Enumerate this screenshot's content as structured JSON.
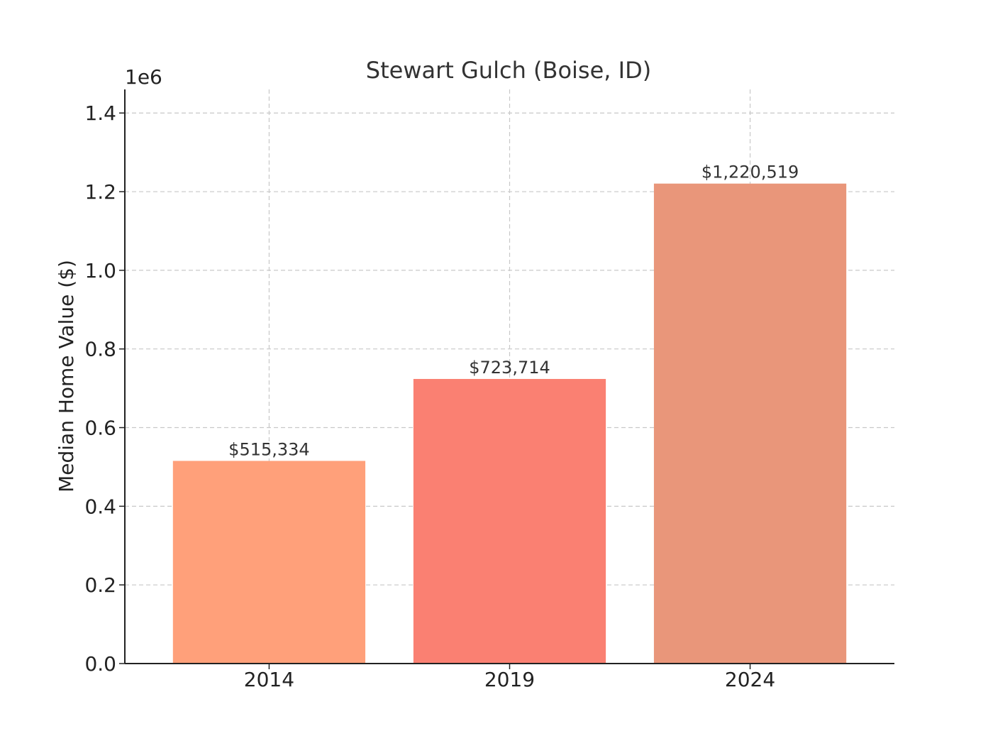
{
  "chart_data": {
    "type": "bar",
    "title": "Stewart Gulch (Boise, ID)",
    "xlabel": "",
    "ylabel": "Median Home Value ($)",
    "y_offset_label": "1e6",
    "categories": [
      "2014",
      "2019",
      "2024"
    ],
    "values": [
      515334,
      723714,
      1220519
    ],
    "data_labels": [
      "$515,334",
      "$723,714",
      "$1,220,519"
    ],
    "colors": [
      "#FFA07A",
      "#FA8072",
      "#E9967A"
    ],
    "ylim": [
      0,
      1460000
    ],
    "y_ticks": [
      0,
      200000,
      400000,
      600000,
      800000,
      1000000,
      1200000,
      1400000
    ],
    "y_tick_labels": [
      "0.0",
      "0.2",
      "0.4",
      "0.6",
      "0.8",
      "1.0",
      "1.2",
      "1.4"
    ],
    "grid": true,
    "legend": "none"
  }
}
